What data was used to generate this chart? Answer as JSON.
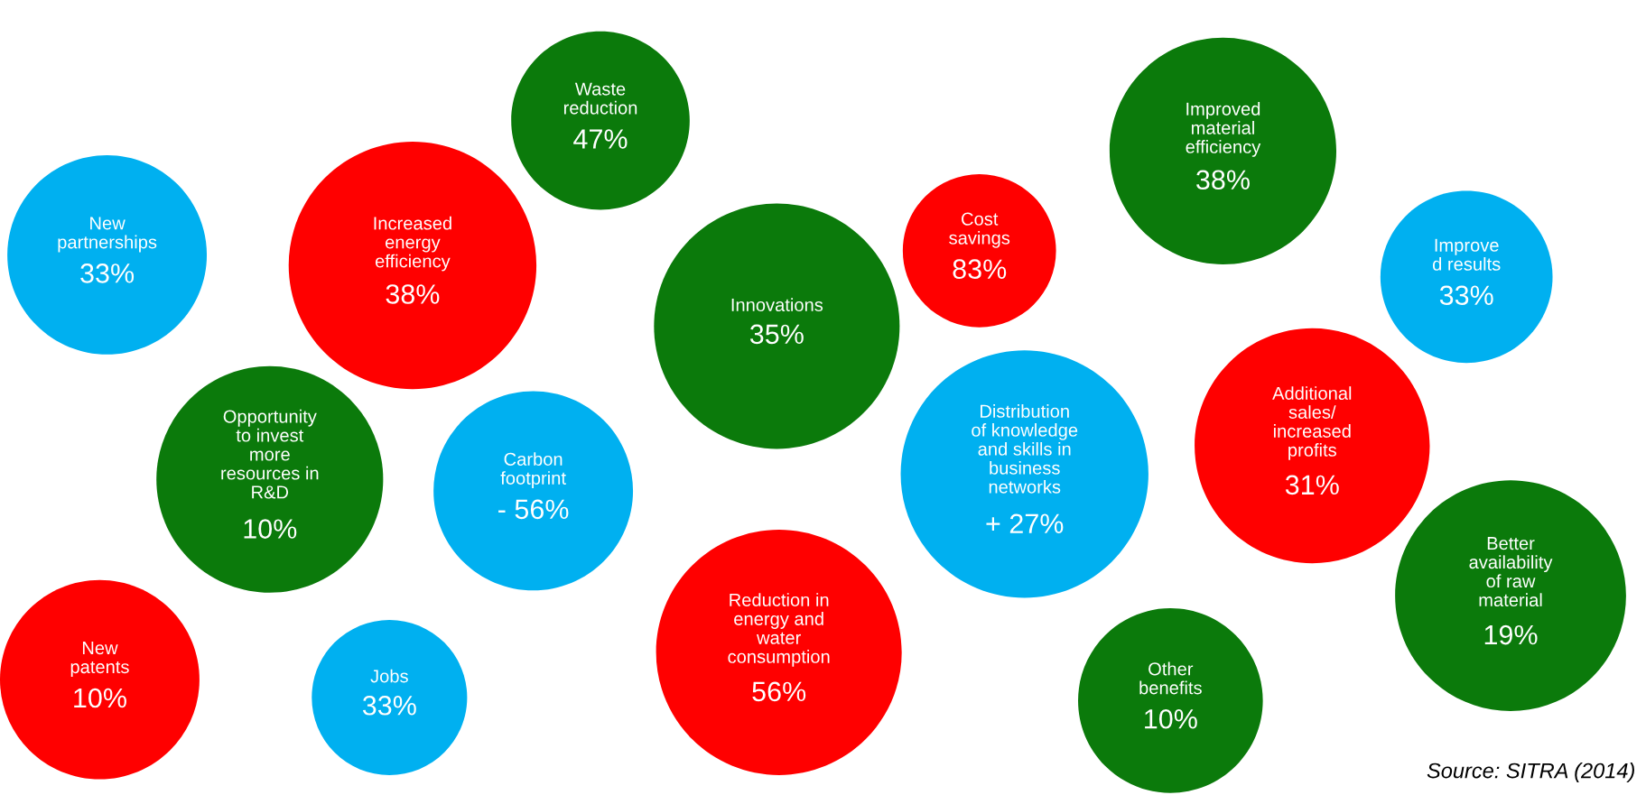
{
  "chart_data": {
    "type": "other",
    "categories": [
      "New\npartnerships",
      "Increased\nenergy\nefficiency",
      "Waste\nreduction",
      "Innovations",
      "Cost\nsavings",
      "Improved\nmaterial\nefficiency",
      "Improve\nd results",
      "Additional\nsales/\nincreased\nprofits",
      "Opportunity\nto invest\nmore\nresources in\nR&D",
      "Carbon\nfootprint",
      "Distribution\nof knowledge\nand skills in\nbusiness\nnetworks",
      "Better\navailability\nof raw\nmaterial",
      "New\npatents",
      "Jobs",
      "Reduction in\nenergy and\nwater\nconsumption",
      "Other\nbenefits"
    ],
    "values": [
      33,
      38,
      47,
      35,
      83,
      38,
      33,
      31,
      10,
      -56,
      27,
      19,
      10,
      33,
      56,
      10
    ],
    "value_labels": [
      "33%",
      "38%",
      "47%",
      "35%",
      "83%",
      "38%",
      "33%",
      "31%",
      "10%",
      "- 56%",
      "+ 27%",
      "19%",
      "10%",
      "33%",
      "56%",
      "10%"
    ],
    "colors": [
      "#00b0f0",
      "#ff0000",
      "#0b7a0b",
      "#0b7a0b",
      "#ff0000",
      "#0b7a0b",
      "#00b0f0",
      "#ff0000",
      "#0b7a0b",
      "#00b0f0",
      "#00b0f0",
      "#0b7a0b",
      "#ff0000",
      "#00b0f0",
      "#ff0000",
      "#0b7a0b"
    ],
    "annotations": [
      "Source: SITRA (2014)"
    ]
  }
}
